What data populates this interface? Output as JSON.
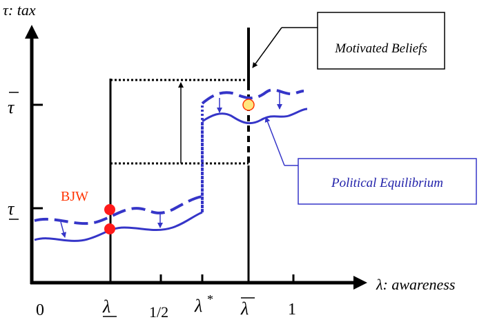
{
  "axes": {
    "y_title": "τ: tax",
    "x_title": "λ: awareness",
    "y_ticks": {
      "tau_bar": "τ",
      "tau_under": "τ"
    },
    "x_ticks": {
      "zero": "0",
      "lambda_under": "λ",
      "half": "1/2",
      "lambda_star": "λ",
      "lambda_star_sup": "*",
      "lambda_bar": "λ",
      "one": "1"
    }
  },
  "labels": {
    "bjw": "BJW",
    "motivated_beliefs": "Motivated Beliefs",
    "political_equilibrium": "Political Equilibrium"
  },
  "colors": {
    "axis": "#000000",
    "curve": "#3535c8",
    "bjw_dot": "#ff1a1a",
    "bjw_text": "#ff3300",
    "eq_dot_fill": "#ffe680",
    "eq_dot_stroke": "#ff3300",
    "pe_text": "#2222aa"
  }
}
